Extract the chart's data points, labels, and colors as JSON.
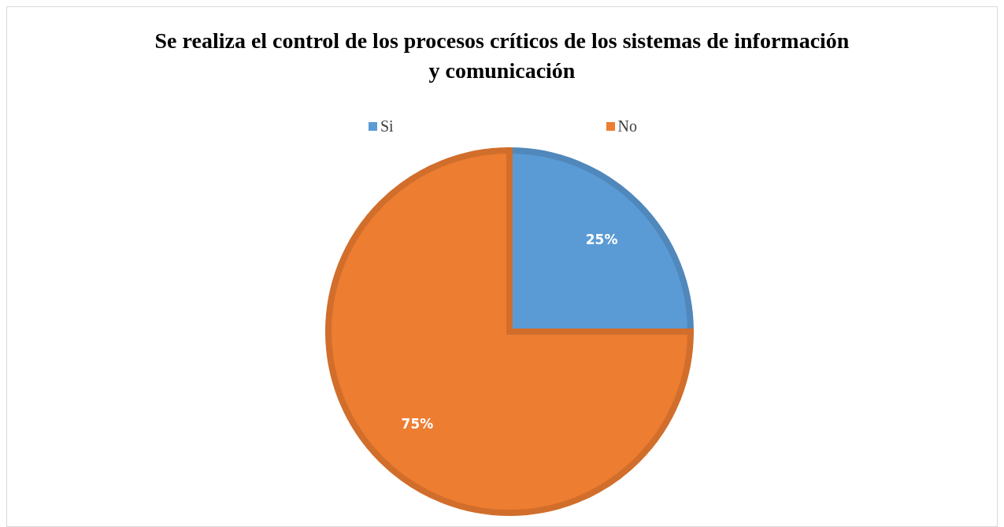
{
  "chart_data": {
    "type": "pie",
    "title": "Se realiza el control de los procesos críticos de los sistemas de información y comunicación",
    "categories": [
      "Si",
      "No"
    ],
    "values": [
      25,
      75
    ],
    "colors": [
      "#5b9bd5",
      "#ed7d31"
    ],
    "value_labels": [
      "25%",
      "75%"
    ],
    "legend": "top"
  }
}
